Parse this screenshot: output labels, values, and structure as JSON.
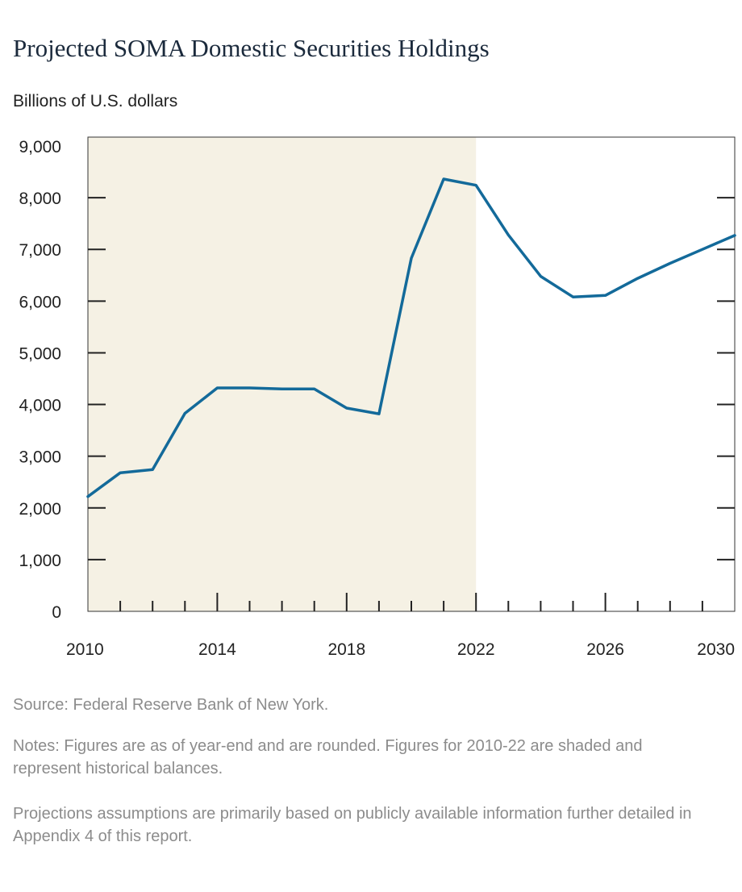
{
  "chart_data": {
    "type": "line",
    "title": "Projected SOMA Domestic Securities Holdings",
    "ylabel": "Billions of U.S. dollars",
    "xlabel": "",
    "xlim": [
      2010,
      2030
    ],
    "ylim": [
      0,
      9000
    ],
    "x_ticks": [
      2010,
      2011,
      2012,
      2013,
      2014,
      2015,
      2016,
      2017,
      2018,
      2019,
      2020,
      2021,
      2022,
      2023,
      2024,
      2025,
      2026,
      2027,
      2028,
      2029,
      2030
    ],
    "x_tick_labels": [
      "2010",
      "2014",
      "2018",
      "2022",
      "2026",
      "2030"
    ],
    "y_tick_labels": [
      "9,000",
      "8,000",
      "7,000",
      "6,000",
      "5,000",
      "4,000",
      "3,000",
      "2,000",
      "1,000",
      "0"
    ],
    "shaded_range": [
      2010,
      2022
    ],
    "grid": false,
    "series": [
      {
        "x": [
          2010,
          2011,
          2012,
          2013,
          2014,
          2015,
          2016,
          2017,
          2018,
          2019,
          2020,
          2021,
          2022,
          2023,
          2024,
          2025,
          2026,
          2027,
          2028,
          2029,
          2030
        ],
        "values": [
          2220,
          2680,
          2740,
          3830,
          4320,
          4320,
          4300,
          4300,
          3930,
          3820,
          6830,
          8360,
          8240,
          7280,
          6480,
          6080,
          6110,
          6440,
          6730,
          7000,
          7270
        ],
        "color": "#136a9a"
      }
    ],
    "colors": {
      "shade": "#f5f1e4",
      "line": "#136a9a",
      "axis": "#222222"
    }
  },
  "source": "Source: Federal Reserve Bank of New York.",
  "notes": "Notes: Figures are as of year-end and are rounded. Figures for 2010-22 are shaded and represent historical balances.",
  "assumptions": "Projections assumptions are primarily based on publicly available information further detailed in Appendix 4 of this report."
}
